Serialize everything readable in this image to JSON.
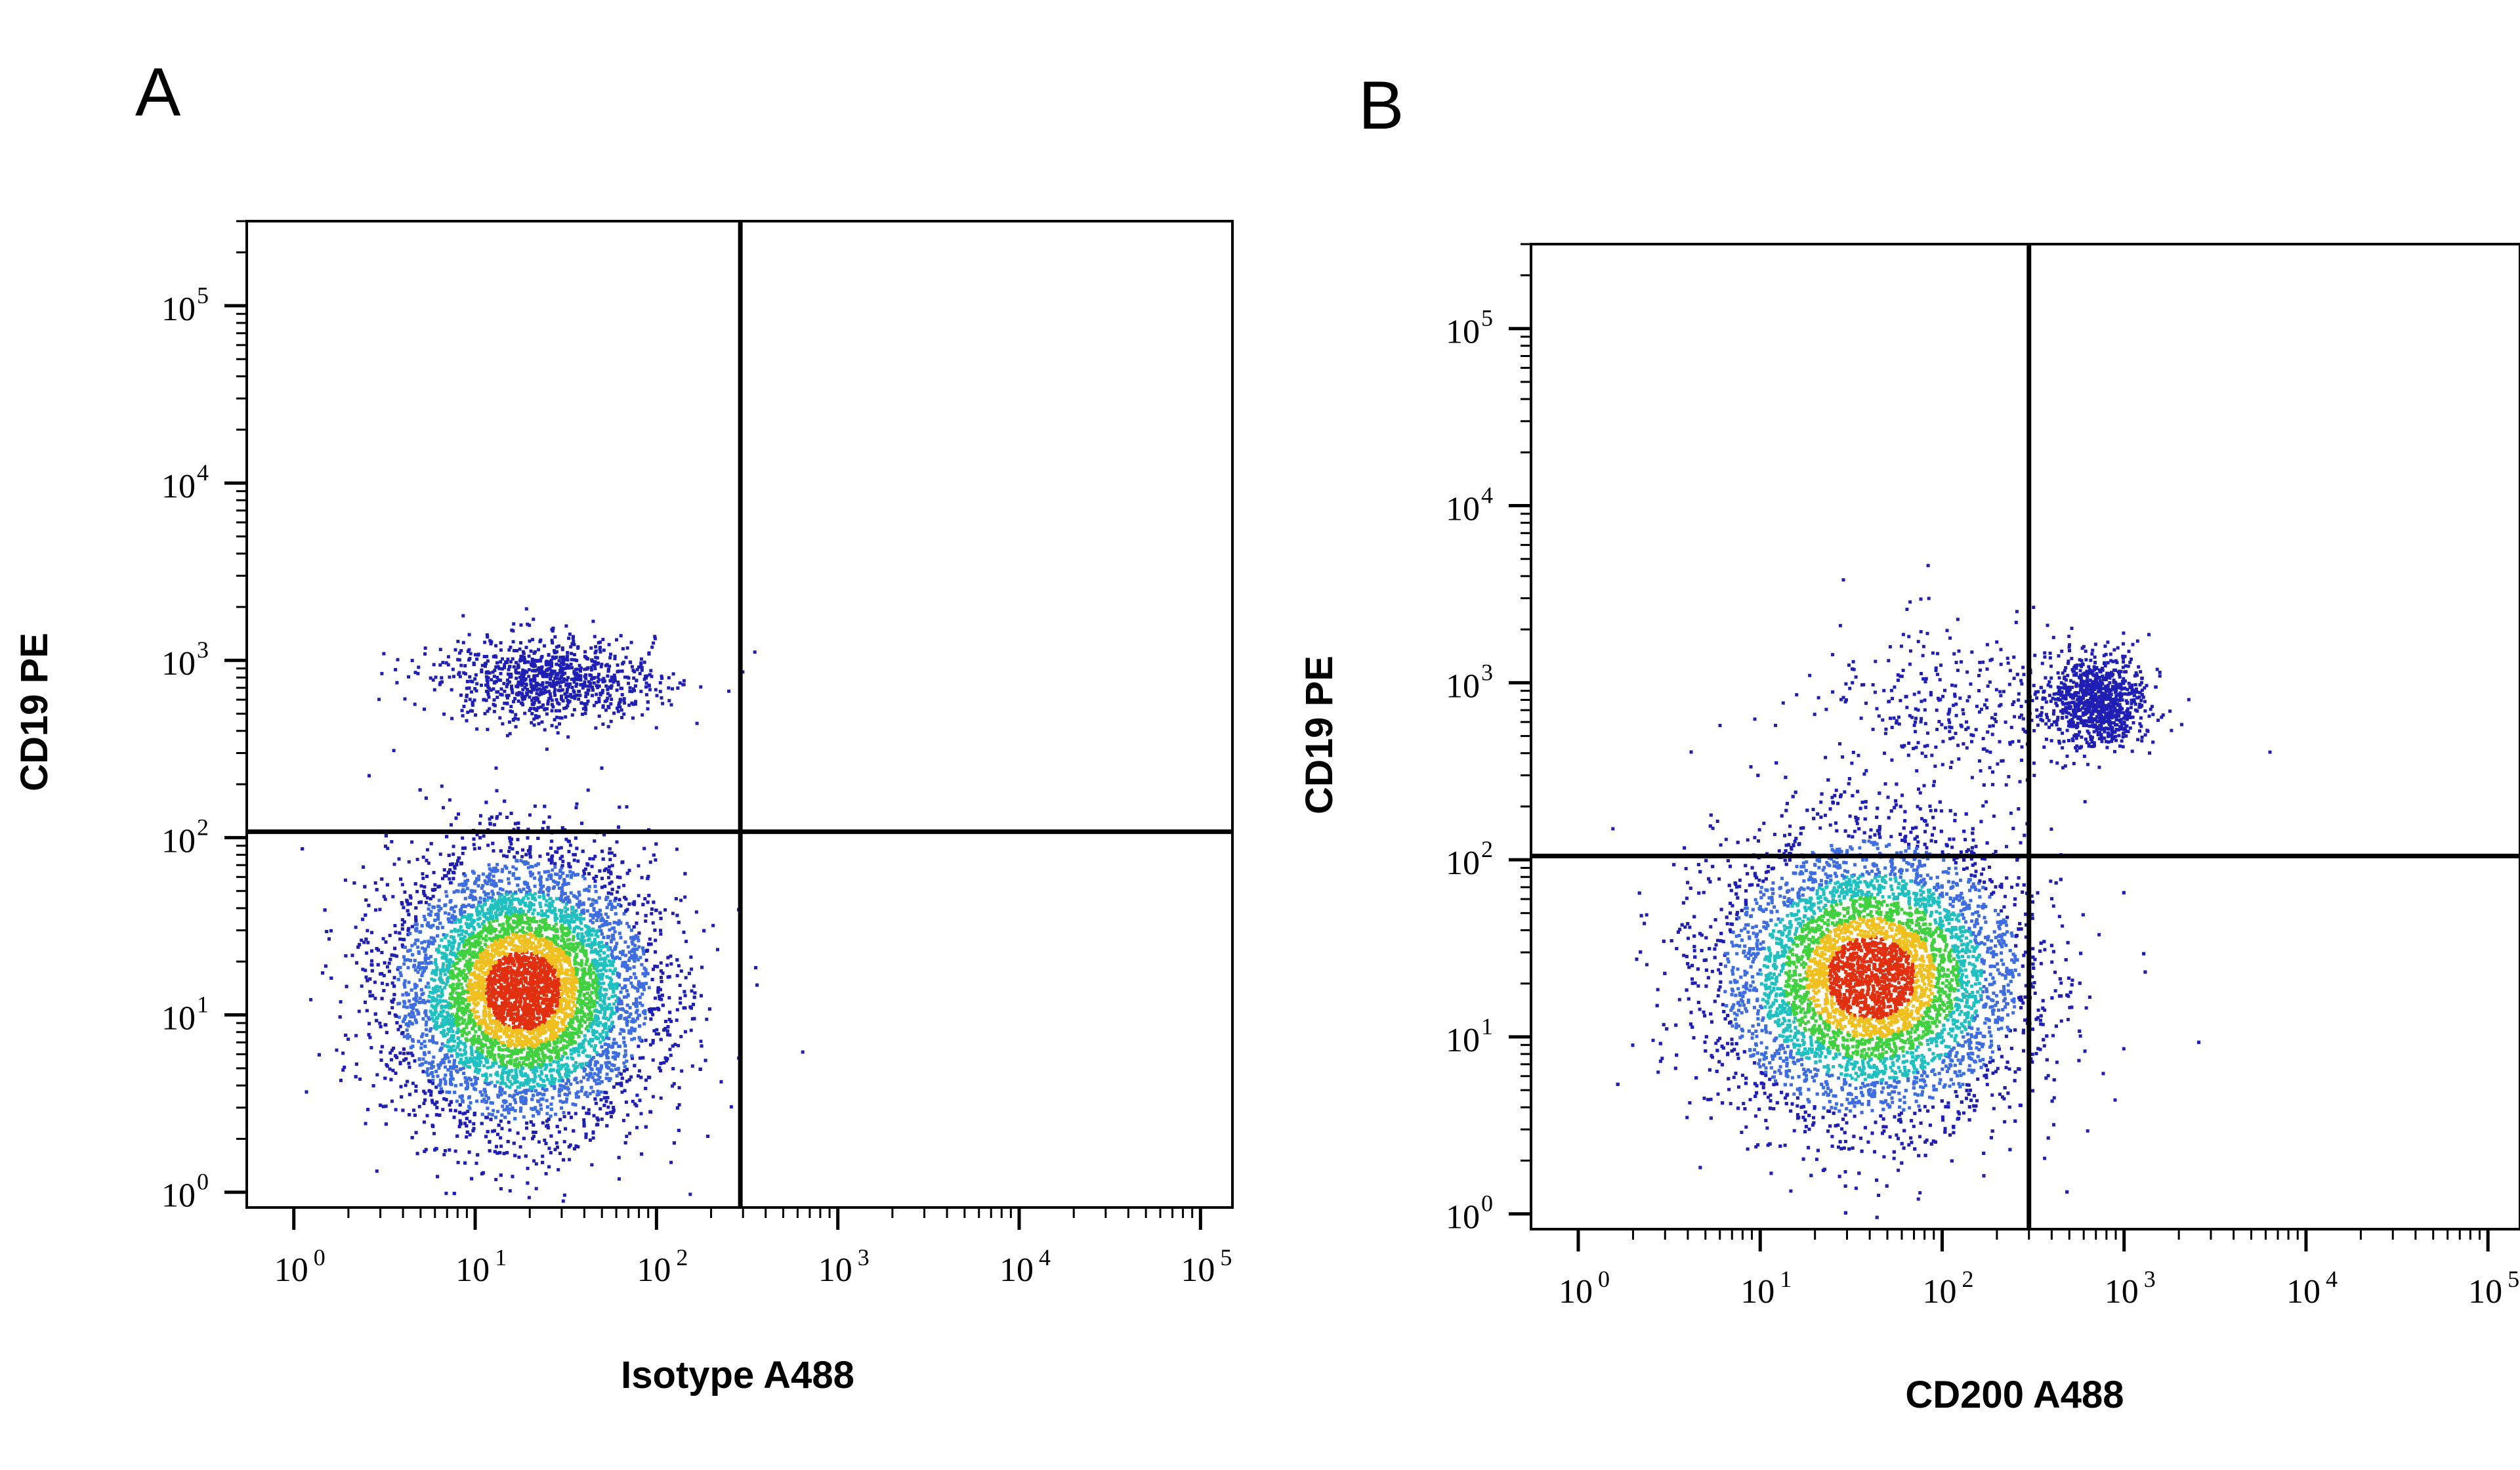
{
  "chart_data": [
    {
      "type": "scatter",
      "subtype": "flow-cytometry-density-plot",
      "panel": "A",
      "xlabel": "Isotype A488",
      "ylabel": "CD19 PE",
      "x_scale": "log",
      "y_scale": "log",
      "xlim": [
        0.55,
        150000
      ],
      "ylim": [
        0.82,
        300000
      ],
      "x_ticks": [
        1,
        10,
        100,
        1000,
        10000,
        100000
      ],
      "y_ticks": [
        1,
        10,
        100,
        1000,
        10000,
        100000
      ],
      "x_tick_labels": [
        {
          "base": "10",
          "exp": "0"
        },
        {
          "base": "10",
          "exp": "1"
        },
        {
          "base": "10",
          "exp": "2"
        },
        {
          "base": "10",
          "exp": "3"
        },
        {
          "base": "10",
          "exp": "4"
        },
        {
          "base": "10",
          "exp": "5"
        }
      ],
      "y_tick_labels": [
        {
          "base": "10",
          "exp": "0"
        },
        {
          "base": "10",
          "exp": "1"
        },
        {
          "base": "10",
          "exp": "2"
        },
        {
          "base": "10",
          "exp": "3"
        },
        {
          "base": "10",
          "exp": "4"
        },
        {
          "base": "10",
          "exp": "5"
        }
      ],
      "quadrant_gate": {
        "x": 290,
        "y": 108
      },
      "populations": [
        {
          "center": [
            18,
            14
          ],
          "spread": [
            0.36,
            0.38
          ],
          "density": "high"
        },
        {
          "center": [
            25,
            800
          ],
          "spread": [
            0.3,
            0.12
          ],
          "density": "low"
        }
      ]
    },
    {
      "type": "scatter",
      "subtype": "flow-cytometry-density-plot",
      "panel": "B",
      "xlabel": "CD200 A488",
      "ylabel": "CD19 PE",
      "x_scale": "log",
      "y_scale": "log",
      "xlim": [
        0.55,
        150000
      ],
      "ylim": [
        0.82,
        300000
      ],
      "x_ticks": [
        1,
        10,
        100,
        1000,
        10000,
        100000
      ],
      "y_ticks": [
        1,
        10,
        100,
        1000,
        10000,
        100000
      ],
      "x_tick_labels": [
        {
          "base": "10",
          "exp": "0"
        },
        {
          "base": "10",
          "exp": "1"
        },
        {
          "base": "10",
          "exp": "2"
        },
        {
          "base": "10",
          "exp": "3"
        },
        {
          "base": "10",
          "exp": "4"
        },
        {
          "base": "10",
          "exp": "5"
        }
      ],
      "y_tick_labels": [
        {
          "base": "10",
          "exp": "0"
        },
        {
          "base": "10",
          "exp": "1"
        },
        {
          "base": "10",
          "exp": "2"
        },
        {
          "base": "10",
          "exp": "3"
        },
        {
          "base": "10",
          "exp": "4"
        },
        {
          "base": "10",
          "exp": "5"
        }
      ],
      "quadrant_gate": {
        "x": 300,
        "y": 105
      },
      "populations": [
        {
          "center": [
            40,
            22
          ],
          "spread": [
            0.42,
            0.4
          ],
          "density": "high"
        },
        {
          "center": [
            700,
            800
          ],
          "spread": [
            0.14,
            0.13
          ],
          "density": "low"
        },
        {
          "center": [
            120,
            700
          ],
          "spread": [
            0.4,
            0.25
          ],
          "density": "sparse"
        }
      ]
    }
  ],
  "colors": {
    "low": "#1f1fb4",
    "mid_low": "#3d6de0",
    "mid": "#20c0c0",
    "mid_high": "#40d040",
    "high": "#f0c020",
    "peak": "#e03010",
    "lines": "#000000"
  }
}
